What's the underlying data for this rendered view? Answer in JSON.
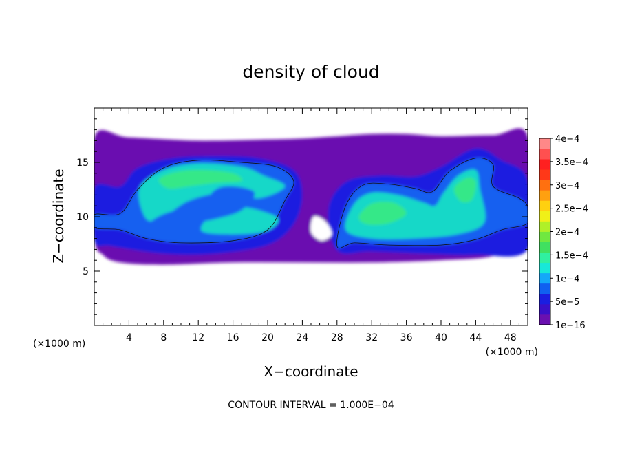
{
  "chart_data": {
    "type": "heatmap",
    "title": "density of cloud",
    "xlabel": "X−coordinate",
    "ylabel": "Z−coordinate",
    "x_unit": "(×1000 m)",
    "y_unit": "(×1000 m)",
    "xlim": [
      0,
      50
    ],
    "ylim": [
      0,
      20
    ],
    "x_ticks": [
      4,
      8,
      12,
      16,
      20,
      24,
      28,
      32,
      36,
      40,
      44,
      48
    ],
    "y_ticks": [
      5,
      10,
      15
    ],
    "grid": false,
    "legend": "right colorbar",
    "footer": "CONTOUR INTERVAL = 1.000E−04",
    "colorbar": {
      "labels": [
        "1e−16",
        "5e−5",
        "1e−4",
        "1.5e−4",
        "2e−4",
        "2.5e−4",
        "3e−4",
        "3.5e−4",
        "4e−4"
      ],
      "values": [
        1e-16,
        5e-05,
        0.0001,
        0.00015,
        0.0002,
        0.00025,
        0.0003,
        0.00035,
        0.0004
      ],
      "colors": [
        "#6a10b0",
        "#3a10c8",
        "#1a1ee0",
        "#1060f0",
        "#14a8f8",
        "#18e8d8",
        "#30f0a0",
        "#40e060",
        "#70e840",
        "#b0f028",
        "#f0f018",
        "#ffd010",
        "#ffa010",
        "#ff7010",
        "#ff3818",
        "#ff2020",
        "#ff5050",
        "#ff8888"
      ]
    },
    "regions": [
      {
        "level": 0,
        "name": "cloud envelope",
        "points": [
          [
            0,
            17.3
          ],
          [
            4,
            17.3
          ],
          [
            12,
            17.0
          ],
          [
            20,
            17.1
          ],
          [
            24,
            17.2
          ],
          [
            28,
            17.4
          ],
          [
            32,
            17.6
          ],
          [
            36,
            17.6
          ],
          [
            40,
            17.4
          ],
          [
            46,
            17.5
          ],
          [
            50,
            17.4
          ],
          [
            50,
            8.0
          ],
          [
            46,
            6.4
          ],
          [
            40,
            6.0
          ],
          [
            32,
            5.8
          ],
          [
            24,
            5.8
          ],
          [
            16,
            5.8
          ],
          [
            8,
            5.6
          ],
          [
            3,
            5.8
          ],
          [
            1,
            6.5
          ],
          [
            0,
            8.3
          ]
        ]
      },
      {
        "level": 1,
        "name": "left band",
        "points": [
          [
            0,
            12.7
          ],
          [
            3,
            12.8
          ],
          [
            5,
            14.5
          ],
          [
            9,
            15.4
          ],
          [
            14,
            15.6
          ],
          [
            19,
            15.4
          ],
          [
            23,
            14.3
          ],
          [
            24,
            12.0
          ],
          [
            23,
            9.3
          ],
          [
            20,
            7.4
          ],
          [
            14,
            6.6
          ],
          [
            8,
            6.6
          ],
          [
            2,
            7.3
          ],
          [
            0,
            7.8
          ]
        ]
      },
      {
        "level": 1,
        "name": "right band",
        "points": [
          [
            27,
            10.7
          ],
          [
            29,
            13.2
          ],
          [
            33,
            13.8
          ],
          [
            37,
            13.7
          ],
          [
            40,
            14.6
          ],
          [
            44,
            16.3
          ],
          [
            47,
            15.2
          ],
          [
            50,
            13.4
          ],
          [
            50,
            7.0
          ],
          [
            44,
            6.5
          ],
          [
            38,
            6.6
          ],
          [
            32,
            6.8
          ],
          [
            28,
            6.9
          ]
        ]
      },
      {
        "level": 2,
        "name": "left core",
        "points": [
          [
            0,
            10.2
          ],
          [
            3,
            10.3
          ],
          [
            5,
            12.5
          ],
          [
            8,
            14.5
          ],
          [
            12,
            15.2
          ],
          [
            17,
            15.0
          ],
          [
            21,
            14.6
          ],
          [
            23,
            13.3
          ],
          [
            22,
            11.5
          ],
          [
            20,
            8.8
          ],
          [
            16,
            7.8
          ],
          [
            10,
            7.6
          ],
          [
            6,
            8.0
          ],
          [
            3,
            8.8
          ],
          [
            0,
            9.0
          ]
        ]
      },
      {
        "level": 2,
        "name": "right core",
        "points": [
          [
            28,
            7.3
          ],
          [
            29,
            11.0
          ],
          [
            31,
            12.9
          ],
          [
            34,
            13.0
          ],
          [
            37,
            12.6
          ],
          [
            39,
            12.3
          ],
          [
            41,
            14.2
          ],
          [
            44,
            15.4
          ],
          [
            46,
            14.8
          ],
          [
            46,
            12.8
          ],
          [
            49,
            11.7
          ],
          [
            50,
            10.9
          ],
          [
            50,
            9.4
          ],
          [
            47,
            8.8
          ],
          [
            44,
            7.9
          ],
          [
            40,
            7.4
          ],
          [
            34,
            7.4
          ],
          [
            30,
            7.6
          ]
        ]
      },
      {
        "level": 3,
        "name": "left bright",
        "points": [
          [
            5.2,
            12.6
          ],
          [
            8,
            14.3
          ],
          [
            12,
            14.9
          ],
          [
            17,
            14.6
          ],
          [
            19.5,
            13.8
          ],
          [
            22,
            12.8
          ],
          [
            19,
            11.7
          ],
          [
            15,
            12.2
          ],
          [
            11,
            11.5
          ],
          [
            8,
            10.0
          ],
          [
            6,
            9.8
          ]
        ]
      },
      {
        "level": 3,
        "name": "left lower bright",
        "points": [
          [
            12.3,
            8.8
          ],
          [
            14,
            10.5
          ],
          [
            17,
            10.9
          ],
          [
            20.5,
            10.2
          ],
          [
            21.2,
            9.5
          ],
          [
            19.5,
            8.6
          ],
          [
            15,
            8.4
          ]
        ]
      },
      {
        "level": 3,
        "name": "right bright",
        "points": [
          [
            29,
            8.8
          ],
          [
            30,
            11.2
          ],
          [
            32,
            12.2
          ],
          [
            35,
            12.0
          ],
          [
            38,
            11.3
          ],
          [
            39.3,
            11.0
          ],
          [
            40.3,
            12.2
          ],
          [
            42,
            13.8
          ],
          [
            44,
            14.3
          ],
          [
            44.5,
            12.5
          ],
          [
            45,
            9.5
          ],
          [
            42,
            8.4
          ],
          [
            37,
            8.0
          ],
          [
            32,
            8.0
          ]
        ]
      },
      {
        "level": 2,
        "name": "left cavity",
        "points": [
          [
            6.5,
            9.5
          ],
          [
            9,
            10.5
          ],
          [
            12,
            10.3
          ],
          [
            13.8,
            12.4
          ],
          [
            16,
            12.8
          ],
          [
            18.5,
            12.2
          ],
          [
            17,
            10.6
          ],
          [
            14,
            9.8
          ],
          [
            10,
            9.2
          ],
          [
            7.5,
            8.8
          ]
        ]
      },
      {
        "level": 4,
        "name": "left green patch",
        "points": [
          [
            7.5,
            13.5
          ],
          [
            10,
            14.2
          ],
          [
            13,
            14.3
          ],
          [
            16,
            14.0
          ],
          [
            17,
            13.3
          ],
          [
            14,
            13.1
          ],
          [
            11,
            12.8
          ],
          [
            8.5,
            12.6
          ]
        ]
      },
      {
        "level": 4,
        "name": "right green patch",
        "points": [
          [
            30.5,
            10.0
          ],
          [
            32,
            11.2
          ],
          [
            34.5,
            11.3
          ],
          [
            36,
            10.3
          ],
          [
            34,
            9.4
          ],
          [
            31.5,
            9.3
          ]
        ]
      },
      {
        "level": 4,
        "name": "upper right green patch",
        "points": [
          [
            41.5,
            12.6
          ],
          [
            43,
            13.6
          ],
          [
            44,
            13.2
          ],
          [
            43.6,
            11.6
          ],
          [
            42.3,
            11.4
          ]
        ]
      },
      {
        "level": -1,
        "name": "clear gap",
        "points": [
          [
            25.3,
            10.0
          ],
          [
            26.6,
            9.6
          ],
          [
            27.4,
            8.4
          ],
          [
            26.2,
            7.8
          ],
          [
            25.0,
            8.6
          ]
        ]
      }
    ]
  }
}
